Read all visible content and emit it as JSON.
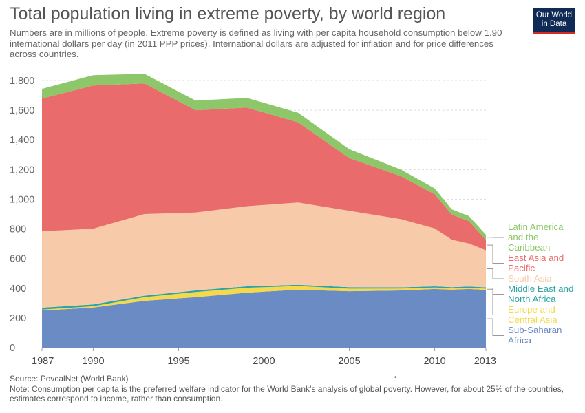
{
  "header": {
    "title": "Total population living in extreme poverty, by world region",
    "subtitle": "Numbers are in millions of people. Extreme poverty is defined as living with per capita household consumption below 1.90 international dollars per day (in 2011 PPP prices). International dollars are adjusted for inflation and for price differences across countries.",
    "logo_line1": "Our World",
    "logo_line2": "in Data"
  },
  "footer": {
    "source": "Source: PovcalNet (World Bank)",
    "note": "Note: Consumption per capita is the preferred welfare indicator for the World Bank’s analysis of global poverty. However, for about 25% of the countries, estimates correspond to income, rather than consumption.",
    "dot": "•"
  },
  "chart_data": {
    "type": "area",
    "stacked": true,
    "x": [
      1987,
      1990,
      1993,
      1996,
      1999,
      2002,
      2005,
      2008,
      2010,
      2011,
      2012,
      2013
    ],
    "xticks": [
      "1987",
      "1990",
      "1995",
      "2000",
      "2005",
      "2010",
      "2013"
    ],
    "xtick_values": [
      1987,
      1990,
      1995,
      2000,
      2005,
      2010,
      2013
    ],
    "xlim": [
      1987,
      2013
    ],
    "ylim": [
      0,
      1800
    ],
    "yticks": [
      0,
      200,
      400,
      600,
      800,
      1000,
      1200,
      1400,
      1600,
      1800
    ],
    "ytick_labels": [
      "0",
      "200",
      "400",
      "600",
      "800",
      "1,000",
      "1,200",
      "1,400",
      "1,600",
      "1,800"
    ],
    "grid": "horizontal dashed",
    "legend": "right",
    "series": [
      {
        "name": "Sub-Saharan Africa",
        "label_lines": [
          "Sub-Saharan",
          "Africa"
        ],
        "color": "#6b8bc4",
        "values": [
          250,
          270,
          315,
          340,
          370,
          390,
          380,
          385,
          395,
          390,
          395,
          389
        ]
      },
      {
        "name": "Europe and Central Asia",
        "label_lines": [
          "Europe and",
          "Central Asia"
        ],
        "color": "#f5d94a",
        "values": [
          6,
          9,
          25,
          35,
          33,
          25,
          17,
          13,
          10,
          9,
          8,
          8
        ]
      },
      {
        "name": "Middle East and North Africa",
        "label_lines": [
          "Middle East and",
          "North Africa"
        ],
        "color": "#2ea3a3",
        "values": [
          13,
          12,
          10,
          10,
          10,
          8,
          10,
          8,
          8,
          8,
          9,
          9
        ]
      },
      {
        "name": "South Asia",
        "label_lines": [
          "South Asia"
        ],
        "color": "#f7cba9",
        "values": [
          515,
          510,
          550,
          525,
          540,
          555,
          515,
          460,
          390,
          320,
          290,
          250
        ]
      },
      {
        "name": "East Asia and Pacific",
        "label_lines": [
          "East Asia and",
          "Pacific"
        ],
        "color": "#ea6b6b",
        "values": [
          895,
          965,
          880,
          690,
          665,
          540,
          355,
          290,
          230,
          170,
          150,
          70
        ]
      },
      {
        "name": "Latin America and the Caribbean",
        "label_lines": [
          "Latin America",
          "and the",
          "Caribbean"
        ],
        "color": "#8ec769",
        "values": [
          65,
          70,
          65,
          65,
          65,
          65,
          60,
          45,
          40,
          35,
          35,
          35
        ]
      }
    ]
  }
}
